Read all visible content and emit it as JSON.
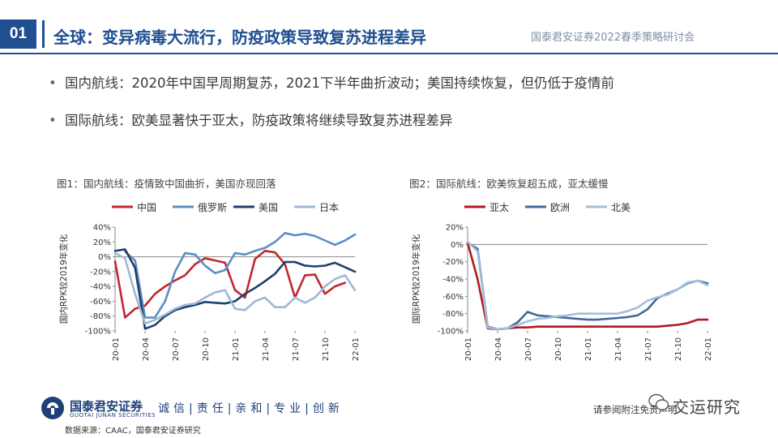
{
  "header": {
    "section_number": "01",
    "title": "全球：变异病毒大流行，防疫政策导致复苏进程差异",
    "tag": "国泰君安证券2022春季策略研讨会"
  },
  "bullets": [
    "国内航线：2020年中国早周期复苏，2021下半年曲折波动；美国持续恢复，但仍低于疫情前",
    "国际航线：欧美显著快于亚太，防疫政策将继续导致复苏进程差异"
  ],
  "colors": {
    "brand": "#1f4e91",
    "china": "#c0272d",
    "russia": "#5b8ec1",
    "usa": "#1f3f6e",
    "japan": "#9fb8d6",
    "asia_pacific": "#b3191f",
    "europe": "#3f6a9a",
    "north_america": "#a6bdd8"
  },
  "chart_data": [
    {
      "type": "line",
      "title": "图1：国内航线：疫情致中国曲折，美国亦现回落",
      "ylabel": "国内RPK较2019年变化",
      "xlabel": "",
      "ylim": [
        -100,
        40
      ],
      "yticks": [
        "40%",
        "20%",
        "0%",
        "-20%",
        "-40%",
        "-60%",
        "-80%",
        "-100%"
      ],
      "x_tick_labels": [
        "20-01",
        "20-04",
        "20-07",
        "20-10",
        "21-01",
        "21-04",
        "21-07",
        "21-10",
        "22-01"
      ],
      "x": [
        "20-01",
        "20-02",
        "20-03",
        "20-04",
        "20-05",
        "20-06",
        "20-07",
        "20-08",
        "20-09",
        "20-10",
        "20-11",
        "20-12",
        "21-01",
        "21-02",
        "21-03",
        "21-04",
        "21-05",
        "21-06",
        "21-07",
        "21-08",
        "21-09",
        "21-10",
        "21-11",
        "21-12",
        "22-01"
      ],
      "legend": "top",
      "grid": false,
      "series": [
        {
          "name": "中国",
          "color_key": "china",
          "values": [
            -6,
            -82,
            -70,
            -66,
            -50,
            -40,
            -32,
            -25,
            -10,
            -2,
            -5,
            -8,
            -45,
            -55,
            -3,
            8,
            6,
            -10,
            -55,
            -25,
            -24,
            -50,
            -40,
            -35,
            null
          ]
        },
        {
          "name": "俄罗斯",
          "color_key": "russia",
          "values": [
            null,
            7,
            -5,
            -82,
            -82,
            -60,
            -20,
            5,
            3,
            -12,
            -22,
            -18,
            5,
            3,
            8,
            12,
            20,
            32,
            29,
            31,
            28,
            22,
            16,
            22,
            30
          ]
        },
        {
          "name": "美国",
          "color_key": "usa",
          "values": [
            8,
            10,
            -15,
            -97,
            -92,
            -80,
            -72,
            -68,
            -65,
            -61,
            -62,
            -63,
            -60,
            -50,
            -42,
            -33,
            -23,
            -7,
            -7,
            -12,
            -13,
            -12,
            -8,
            -14,
            -20
          ]
        },
        {
          "name": "日本",
          "color_key": "japan",
          "values": [
            5,
            -2,
            -50,
            -90,
            -85,
            -78,
            -70,
            -65,
            -63,
            -55,
            -48,
            -45,
            -70,
            -72,
            -60,
            -55,
            -68,
            -68,
            -55,
            -62,
            -55,
            -40,
            -30,
            -25,
            -45
          ]
        }
      ]
    },
    {
      "type": "line",
      "title": "图2：国际航线：欧美恢复超五成，亚太缓慢",
      "ylabel": "国际RPK较2019年变化",
      "xlabel": "",
      "ylim": [
        -100,
        20
      ],
      "yticks": [
        "20%",
        "0%",
        "-20%",
        "-40%",
        "-60%",
        "-80%",
        "-100%"
      ],
      "x_tick_labels": [
        "20-01",
        "20-04",
        "20-07",
        "20-10",
        "21-01",
        "21-04",
        "21-07",
        "21-10",
        "22-01"
      ],
      "x": [
        "20-01",
        "20-02",
        "20-03",
        "20-04",
        "20-05",
        "20-06",
        "20-07",
        "20-08",
        "20-09",
        "20-10",
        "20-11",
        "20-12",
        "21-01",
        "21-02",
        "21-03",
        "21-04",
        "21-05",
        "21-06",
        "21-07",
        "21-08",
        "21-09",
        "21-10",
        "21-11",
        "21-12",
        "22-01"
      ],
      "legend": "top",
      "grid": false,
      "series": [
        {
          "name": "亚太",
          "color_key": "asia_pacific",
          "values": [
            2,
            -40,
            -97,
            -98,
            -97,
            -96,
            -96,
            -95,
            -95,
            -95,
            -95,
            -95,
            -95,
            -95,
            -95,
            -95,
            -95,
            -95,
            -95,
            -95,
            -94,
            -93,
            -91,
            -87,
            -87
          ]
        },
        {
          "name": "欧洲",
          "color_key": "europe",
          "values": [
            2,
            -5,
            -95,
            -98,
            -97,
            -90,
            -78,
            -82,
            -83,
            -84,
            -85,
            -86,
            -87,
            -87,
            -86,
            -85,
            -84,
            -82,
            -75,
            -62,
            -57,
            -52,
            -45,
            -42,
            -45
          ]
        },
        {
          "name": "北美",
          "color_key": "north_america",
          "values": [
            3,
            -8,
            -96,
            -98,
            -97,
            -93,
            -89,
            -86,
            -85,
            -83,
            -82,
            -80,
            -80,
            -80,
            -80,
            -80,
            -77,
            -73,
            -65,
            -61,
            -58,
            -52,
            -44,
            -42,
            -47
          ]
        }
      ]
    }
  ],
  "footer": {
    "company": "国泰君安证券",
    "company_en": "GUOTAI JUNAN SECURITIES",
    "slogan": "诚信|责任|亲和|专业|创新",
    "source": "数据来源：CAAC，国泰君安证券研究",
    "disclaimer": "请参阅附注免责声明",
    "watermark": "交运研究"
  }
}
